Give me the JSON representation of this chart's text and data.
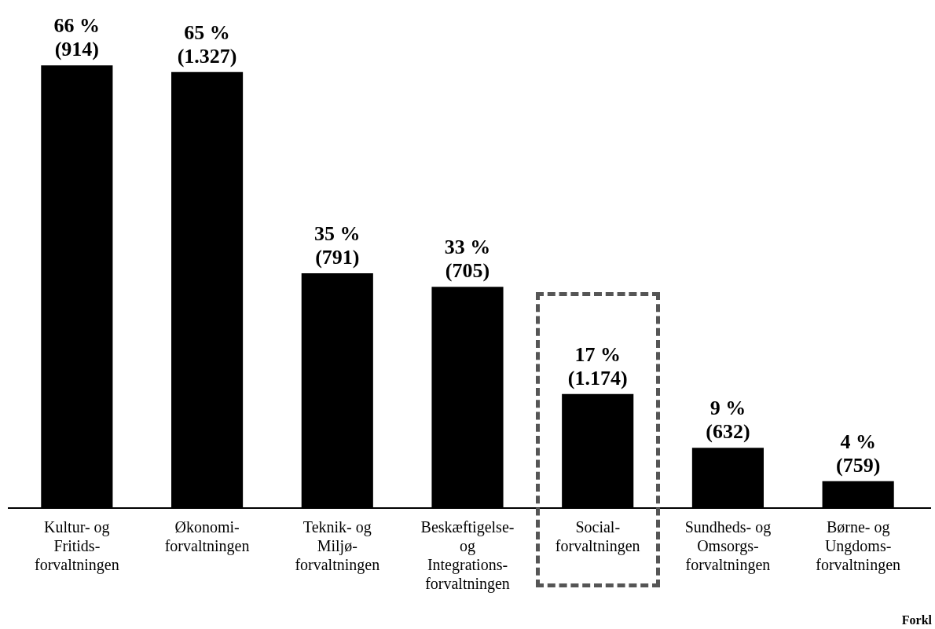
{
  "chart_data": {
    "type": "bar",
    "categories": [
      "Kultur- og\nFritids-\nforvaltningen",
      "Økonomi-\nforvaltningen",
      "Teknik- og\nMiljø-\nforvaltningen",
      "Beskæftigelse-\nog\nIntegrations-\nforvaltningen",
      "Social-\nforvaltningen",
      "Sundheds- og\nOmsorgs-\nforvaltningen",
      "Børne- og\nUngdoms-\nforvaltningen"
    ],
    "values": [
      66,
      65,
      35,
      33,
      17,
      9,
      4
    ],
    "value_labels": [
      "66 %\n(914)",
      "65 %\n(1.327)",
      "35 %\n(791)",
      "33 %\n(705)",
      "17 %\n(1.174)",
      "9 %\n(632)",
      "4 %\n(759)"
    ],
    "color": "#000000",
    "annotations": [
      "Forkl"
    ],
    "grid": false,
    "legend": false
  }
}
